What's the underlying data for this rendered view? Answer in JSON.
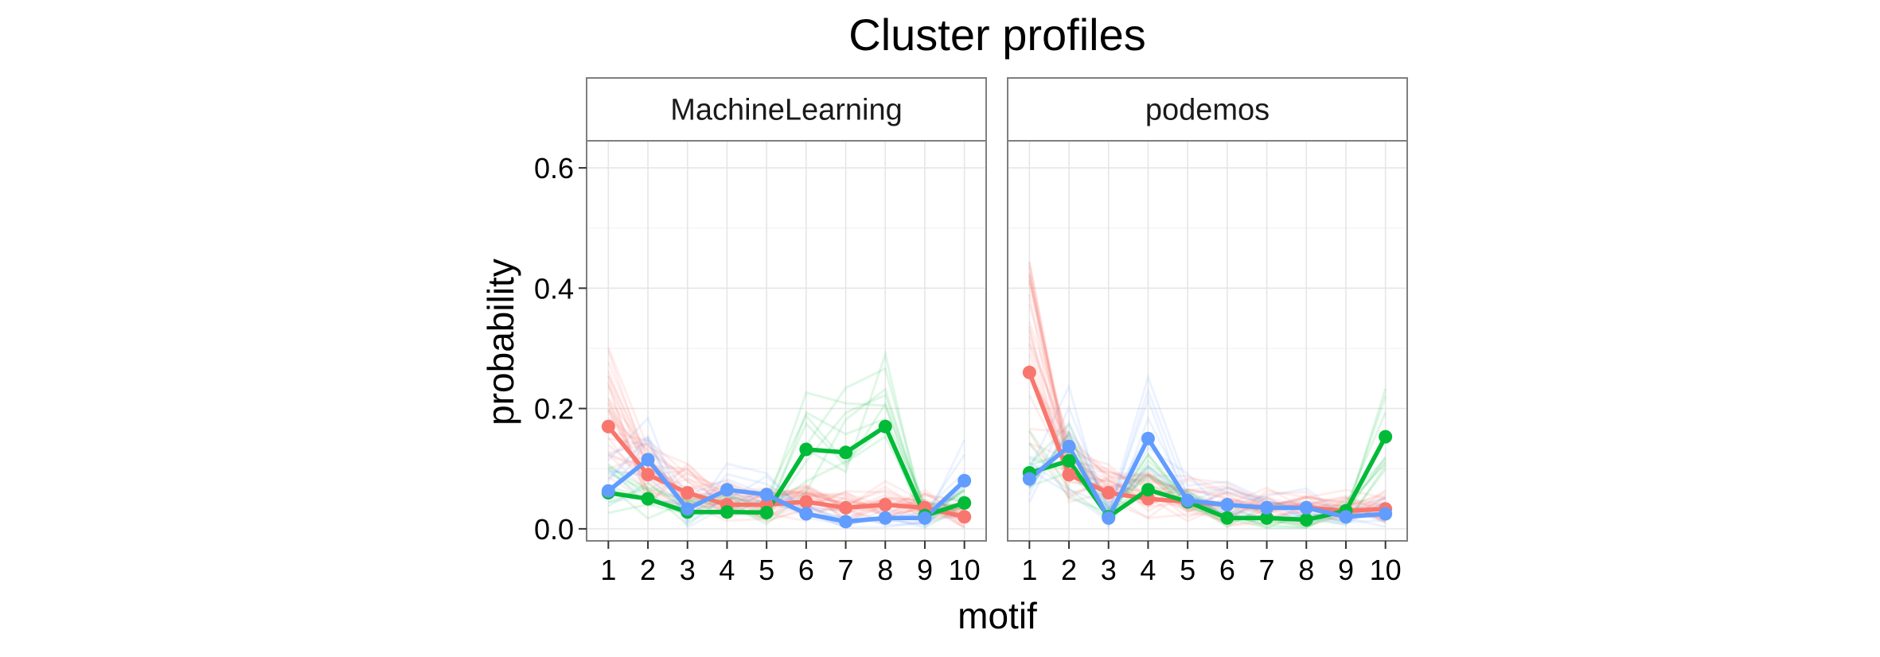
{
  "chart_data": {
    "type": "line",
    "title": "Cluster profiles",
    "xlabel": "motif",
    "ylabel": "probability",
    "x": [
      1,
      2,
      3,
      4,
      5,
      6,
      7,
      8,
      9,
      10
    ],
    "x_tick_labels": [
      "1",
      "2",
      "3",
      "4",
      "5",
      "6",
      "7",
      "8",
      "9",
      "10"
    ],
    "y_ticks": [
      0.0,
      0.2,
      0.4,
      0.6
    ],
    "y_tick_labels": [
      "0.0",
      "0.2",
      "0.4",
      "0.6"
    ],
    "ylim": [
      -0.02,
      0.645
    ],
    "xlim": [
      0.45,
      10.55
    ],
    "grid": true,
    "legend": "none",
    "colors": {
      "red": "#F8766D",
      "green": "#00BA38",
      "blue": "#619CFF"
    },
    "panels": [
      {
        "strip_label": "MachineLearning",
        "series": [
          {
            "color": "#F8766D",
            "values": [
              0.17,
              0.09,
              0.06,
              0.04,
              0.04,
              0.045,
              0.035,
              0.04,
              0.035,
              0.02
            ]
          },
          {
            "color": "#00BA38",
            "values": [
              0.06,
              0.05,
              0.028,
              0.028,
              0.027,
              0.132,
              0.127,
              0.17,
              0.022,
              0.043
            ]
          },
          {
            "color": "#619CFF",
            "values": [
              0.063,
              0.115,
              0.033,
              0.065,
              0.057,
              0.025,
              0.012,
              0.018,
              0.018,
              0.08
            ]
          }
        ]
      },
      {
        "strip_label": "podemos",
        "series": [
          {
            "color": "#F8766D",
            "values": [
              0.26,
              0.09,
              0.06,
              0.05,
              0.045,
              0.04,
              0.035,
              0.035,
              0.03,
              0.033
            ]
          },
          {
            "color": "#00BA38",
            "values": [
              0.093,
              0.113,
              0.02,
              0.065,
              0.045,
              0.018,
              0.018,
              0.015,
              0.03,
              0.153
            ]
          },
          {
            "color": "#619CFF",
            "values": [
              0.083,
              0.137,
              0.018,
              0.15,
              0.047,
              0.04,
              0.035,
              0.035,
              0.02,
              0.025
            ]
          }
        ]
      }
    ]
  }
}
